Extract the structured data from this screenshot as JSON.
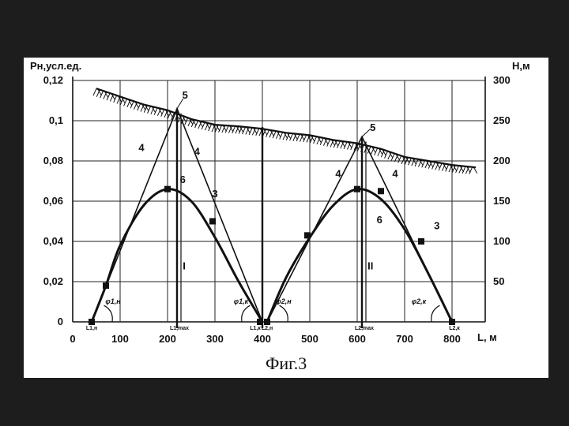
{
  "chart_data": {
    "type": "line",
    "caption": "Фиг.3",
    "left_axis_label": "Pн,усл.ед.",
    "right_axis_label": "H,м",
    "x_axis_label": "L, м",
    "x_ticks": [
      "0",
      "100",
      "200",
      "300",
      "400",
      "500",
      "600",
      "700",
      "800"
    ],
    "y_left_ticks": [
      "0",
      "0,02",
      "0,04",
      "0,06",
      "0,08",
      "0,1",
      "0,12"
    ],
    "y_right_ticks": [
      "50",
      "100",
      "150",
      "200",
      "250",
      "300"
    ],
    "xlim": [
      0,
      870
    ],
    "ylim_left": [
      0,
      0.12
    ],
    "ylim_right": [
      0,
      300
    ],
    "grid": true,
    "series": [
      {
        "key": "terrain",
        "x": [
          50,
          100,
          150,
          200,
          250,
          300,
          350,
          400,
          450,
          500,
          550,
          600,
          650,
          700,
          750,
          800,
          850
        ],
        "y_right": [
          290,
          280,
          270,
          263,
          252,
          245,
          243,
          240,
          235,
          232,
          226,
          222,
          215,
          205,
          200,
          195,
          192
        ]
      },
      {
        "key": "curve_I",
        "x": [
          40,
          70,
          100,
          150,
          200,
          250,
          300,
          350,
          400
        ],
        "y": [
          0,
          0.018,
          0.038,
          0.058,
          0.066,
          0.06,
          0.042,
          0.02,
          0
        ]
      },
      {
        "key": "curve_II",
        "x": [
          410,
          450,
          500,
          550,
          600,
          650,
          700,
          750,
          800
        ],
        "y": [
          0,
          0.022,
          0.042,
          0.058,
          0.066,
          0.061,
          0.046,
          0.024,
          0
        ]
      },
      {
        "key": "lines_I",
        "x": [
          40,
          220,
          400
        ],
        "y": [
          0,
          0.106,
          0
        ]
      },
      {
        "key": "lines_II",
        "x": [
          410,
          610,
          800
        ],
        "y": [
          0,
          0.092,
          0
        ]
      }
    ],
    "markers_I": [
      [
        40,
        0
      ],
      [
        70,
        0.018
      ],
      [
        200,
        0.066
      ],
      [
        295,
        0.05
      ],
      [
        395,
        0
      ]
    ],
    "markers_II": [
      [
        410,
        0
      ],
      [
        495,
        0.043
      ],
      [
        600,
        0.066
      ],
      [
        650,
        0.065
      ],
      [
        735,
        0.04
      ],
      [
        800,
        0
      ]
    ],
    "verticals": [
      220,
      400,
      610
    ],
    "curve_labels": [
      {
        "text": "5",
        "x": 237,
        "y": 0.111
      },
      {
        "text": "4",
        "x": 145,
        "y": 0.085
      },
      {
        "text": "4",
        "x": 262,
        "y": 0.083
      },
      {
        "text": "6",
        "x": 232,
        "y": 0.069
      },
      {
        "text": "3",
        "x": 300,
        "y": 0.062
      },
      {
        "text": "I",
        "x": 235,
        "y": 0.026
      },
      {
        "text": "5",
        "x": 633,
        "y": 0.095
      },
      {
        "text": "4",
        "x": 560,
        "y": 0.072
      },
      {
        "text": "4",
        "x": 680,
        "y": 0.072
      },
      {
        "text": "6",
        "x": 647,
        "y": 0.049
      },
      {
        "text": "3",
        "x": 768,
        "y": 0.046
      },
      {
        "text": "II",
        "x": 628,
        "y": 0.026
      }
    ],
    "angle_labels": [
      {
        "text": "φ1,н",
        "x": 85,
        "y": 0.009
      },
      {
        "text": "φ1,к",
        "x": 355,
        "y": 0.009
      },
      {
        "text": "φ2,н",
        "x": 445,
        "y": 0.009
      },
      {
        "text": "φ2,к",
        "x": 730,
        "y": 0.009
      }
    ],
    "point_labels": [
      {
        "text": "L1,н",
        "x": 40,
        "y": -0.003
      },
      {
        "text": "L1,max",
        "x": 225,
        "y": -0.005
      },
      {
        "text": "L1,к",
        "x": 385,
        "y": -0.003
      },
      {
        "text": "L2,н",
        "x": 410,
        "y": -0.003
      },
      {
        "text": "L2,max",
        "x": 615,
        "y": -0.005
      },
      {
        "text": "L2,к",
        "x": 805,
        "y": -0.003
      }
    ]
  }
}
